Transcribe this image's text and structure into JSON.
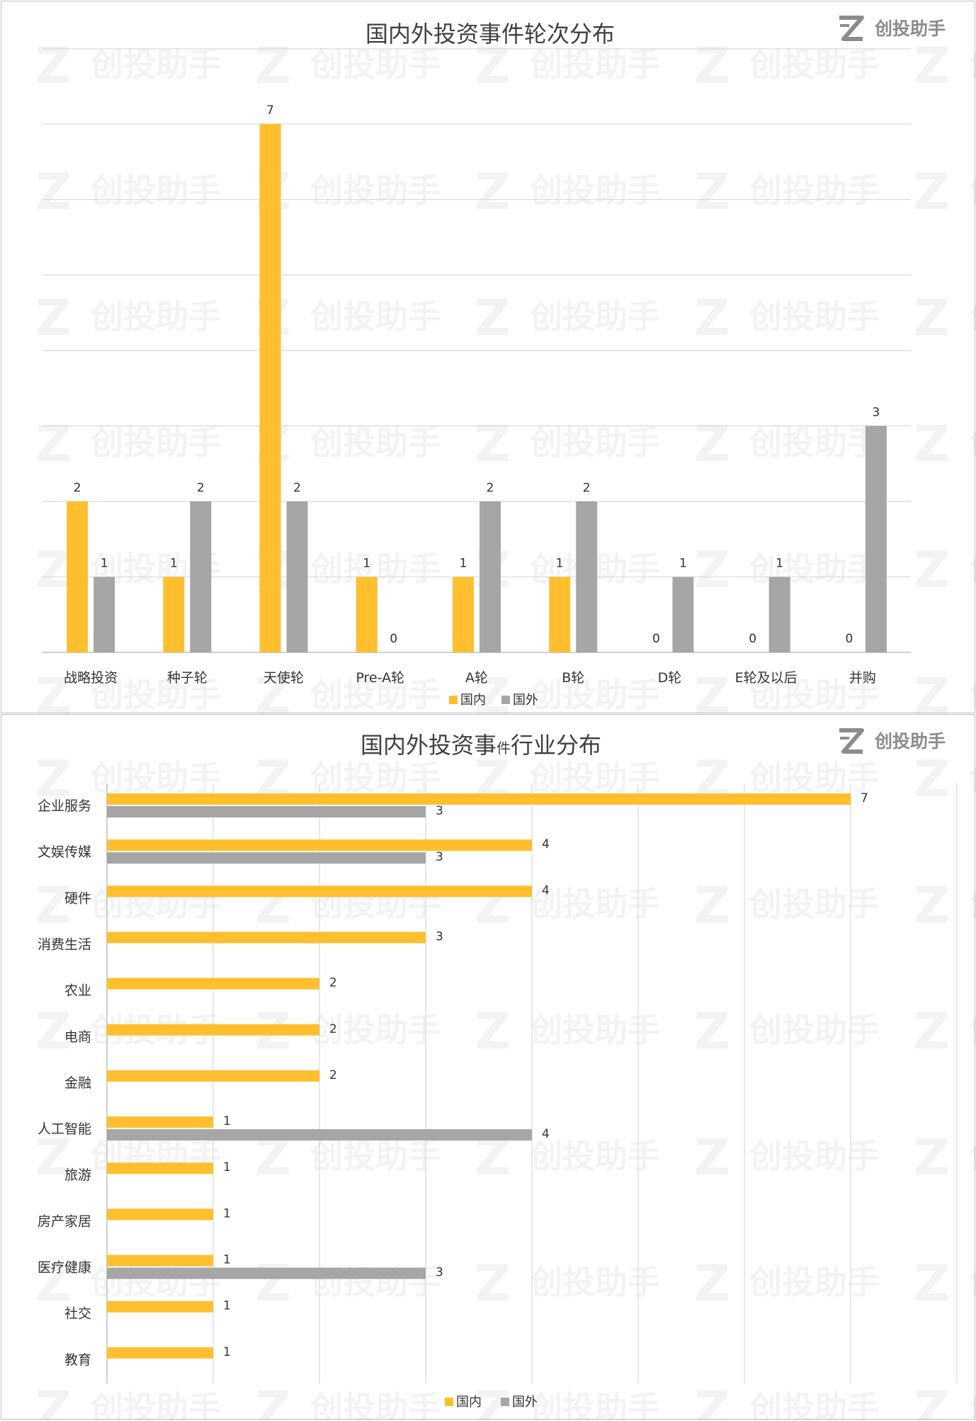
{
  "brand": {
    "text": "创投助手",
    "logo_icon": "z-logo-icon"
  },
  "watermark": {
    "text": "创投助手"
  },
  "colors": {
    "domestic": "#FFBF2E",
    "foreign": "#A6A6A6",
    "grid": "#D9D9D9",
    "axis": "#BFBFBF"
  },
  "chart_data": [
    {
      "type": "bar",
      "orientation": "vertical",
      "title": "国内外投资事件轮次分布",
      "categories": [
        "战略投资",
        "种子轮",
        "天使轮",
        "Pre-A轮",
        "A轮",
        "B轮",
        "D轮",
        "E轮及以后",
        "并购"
      ],
      "series": [
        {
          "name": "国内",
          "values": [
            2,
            1,
            7,
            1,
            1,
            1,
            0,
            0,
            0
          ]
        },
        {
          "name": "国外",
          "values": [
            1,
            2,
            2,
            0,
            2,
            2,
            1,
            1,
            3
          ]
        }
      ],
      "ylim": [
        0,
        7
      ],
      "grid": true,
      "legend": "bottom-center",
      "data_labels": true
    },
    {
      "type": "bar",
      "orientation": "horizontal",
      "title": "国内外投资事件行业分布",
      "title_parts": [
        "国内外投资事",
        "件",
        "行业分布"
      ],
      "categories": [
        "企业服务",
        "文娱传媒",
        "硬件",
        "消费生活",
        "农业",
        "电商",
        "金融",
        "人工智能",
        "旅游",
        "房产家居",
        "医疗健康",
        "社交",
        "教育"
      ],
      "series": [
        {
          "name": "国内",
          "values": [
            7,
            4,
            4,
            3,
            2,
            2,
            2,
            1,
            1,
            1,
            1,
            1,
            1
          ]
        },
        {
          "name": "国外",
          "values": [
            3,
            3,
            0,
            0,
            0,
            0,
            0,
            4,
            0,
            0,
            3,
            0,
            0
          ]
        }
      ],
      "xlim": [
        0,
        8
      ],
      "grid": true,
      "legend": "bottom-center",
      "data_labels": true
    }
  ]
}
